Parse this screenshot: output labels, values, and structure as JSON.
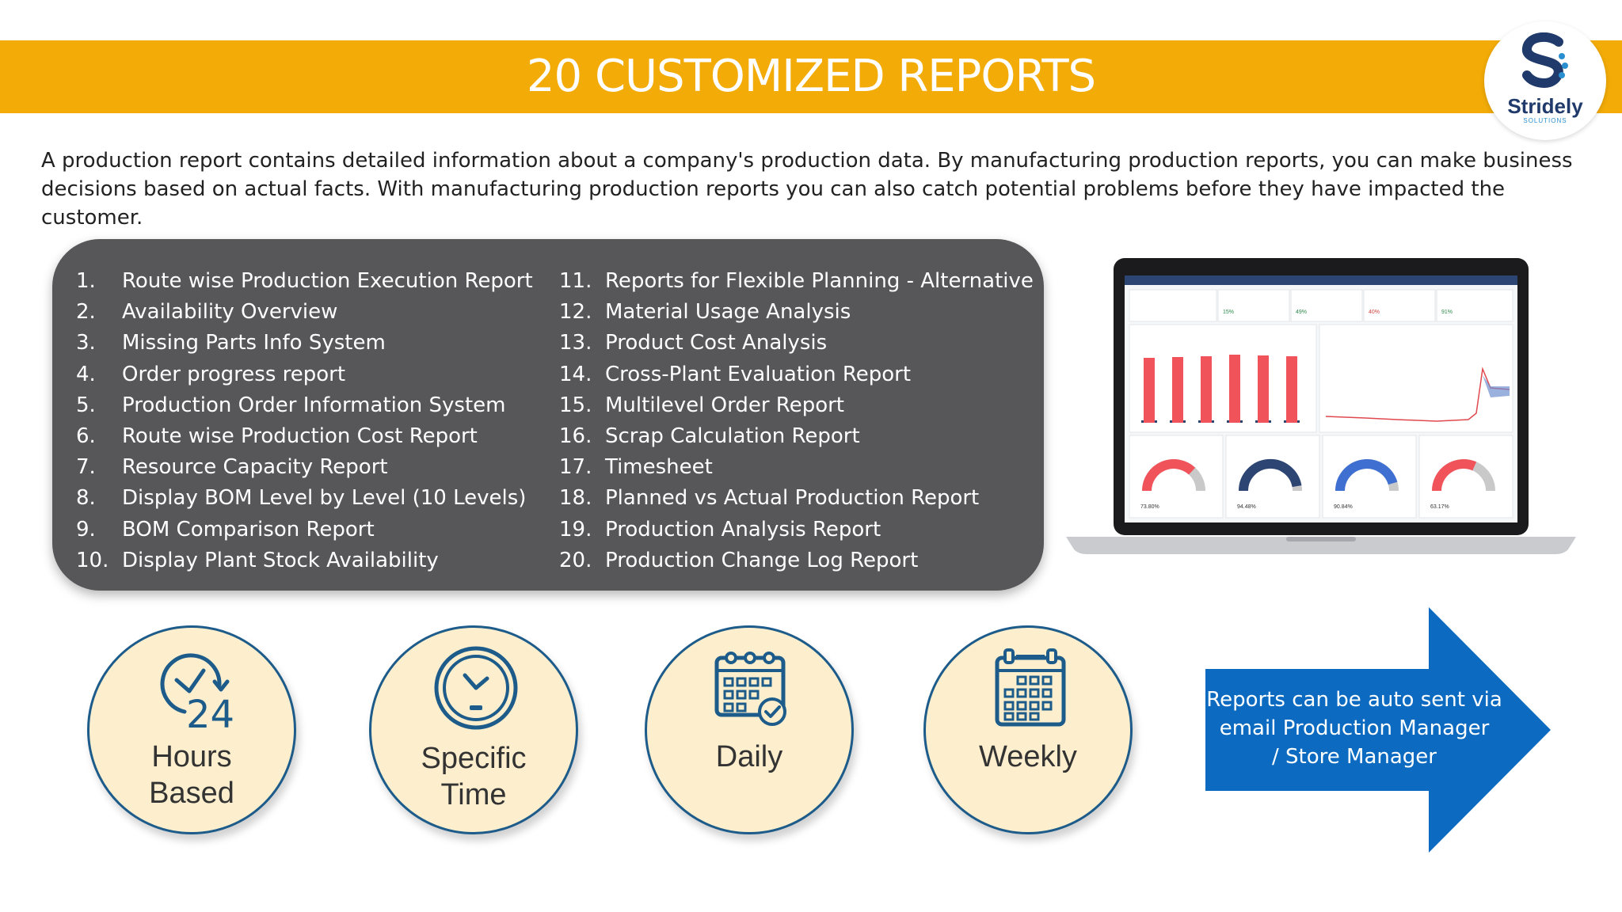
{
  "header": {
    "title": "20 CUSTOMIZED REPORTS"
  },
  "logo": {
    "name": "Stridely",
    "sub": "SOLUTIONS"
  },
  "intro": "A production report contains detailed information about a company's production data. By manufacturing production reports, you can make business decisions based on actual facts. With manufacturing production reports you can also catch potential problems before they have impacted the customer.",
  "reports": {
    "col1": [
      {
        "num": "1.",
        "label": "Route wise Production Execution Report"
      },
      {
        "num": "2.",
        "label": "Availability Overview"
      },
      {
        "num": "3.",
        "label": "Missing Parts Info System"
      },
      {
        "num": "4.",
        "label": "Order progress report"
      },
      {
        "num": "5.",
        "label": "Production Order Information System"
      },
      {
        "num": "6.",
        "label": "Route wise Production Cost Report"
      },
      {
        "num": "7.",
        "label": "Resource Capacity Report"
      },
      {
        "num": "8.",
        "label": "Display BOM Level by Level (10 Levels)"
      },
      {
        "num": "9.",
        "label": "BOM Comparison Report"
      },
      {
        "num": "10.",
        "label": "Display Plant Stock Availability"
      }
    ],
    "col2": [
      {
        "num": "11.",
        "label": "Reports for Flexible Planning - Alternative"
      },
      {
        "num": "12.",
        "label": "Material Usage Analysis"
      },
      {
        "num": "13.",
        "label": "Product Cost Analysis"
      },
      {
        "num": "14.",
        "label": "Cross-Plant Evaluation Report"
      },
      {
        "num": "15.",
        "label": "Multilevel Order Report"
      },
      {
        "num": "16.",
        "label": "Scrap Calculation Report"
      },
      {
        "num": "17.",
        "label": "Timesheet"
      },
      {
        "num": "18.",
        "label": "Planned vs Actual Production Report"
      },
      {
        "num": "19.",
        "label": "Production Analysis Report"
      },
      {
        "num": "20.",
        "label": "Production Change Log Report"
      }
    ]
  },
  "dashboard": {
    "kpis": [
      "15%",
      "49%",
      "40%",
      "91%"
    ],
    "gauges": [
      "73.80%",
      "94.48%",
      "90.84%",
      "63.17%"
    ],
    "bar_levels": [
      0.82,
      0.83,
      0.84,
      0.86,
      0.85,
      0.84
    ],
    "colors": {
      "red": "#f0545a",
      "navy": "#2c4573",
      "blue": "#3f6fd1",
      "gray": "#c9c9c9"
    }
  },
  "schedules": [
    {
      "line1": "Hours",
      "line2": "Based",
      "icon": "clock-24-icon"
    },
    {
      "line1": "Specific",
      "line2": "Time",
      "icon": "stopwatch-icon"
    },
    {
      "line1": "Daily",
      "line2": "",
      "icon": "calendar-check-icon"
    },
    {
      "line1": "Weekly",
      "line2": "",
      "icon": "calendar-grid-icon"
    }
  ],
  "callout": {
    "text_line1": "Reports can be auto sent via",
    "text_line2": "email Production Manager",
    "text_line3": "/ Store Manager"
  },
  "colors": {
    "banner": "#f2ab07",
    "panel": "#575659",
    "circle_fill": "#fdefcd",
    "circle_border": "#1d5c8a",
    "icon": "#1d5c8a",
    "arrow": "#0c6bc0"
  }
}
